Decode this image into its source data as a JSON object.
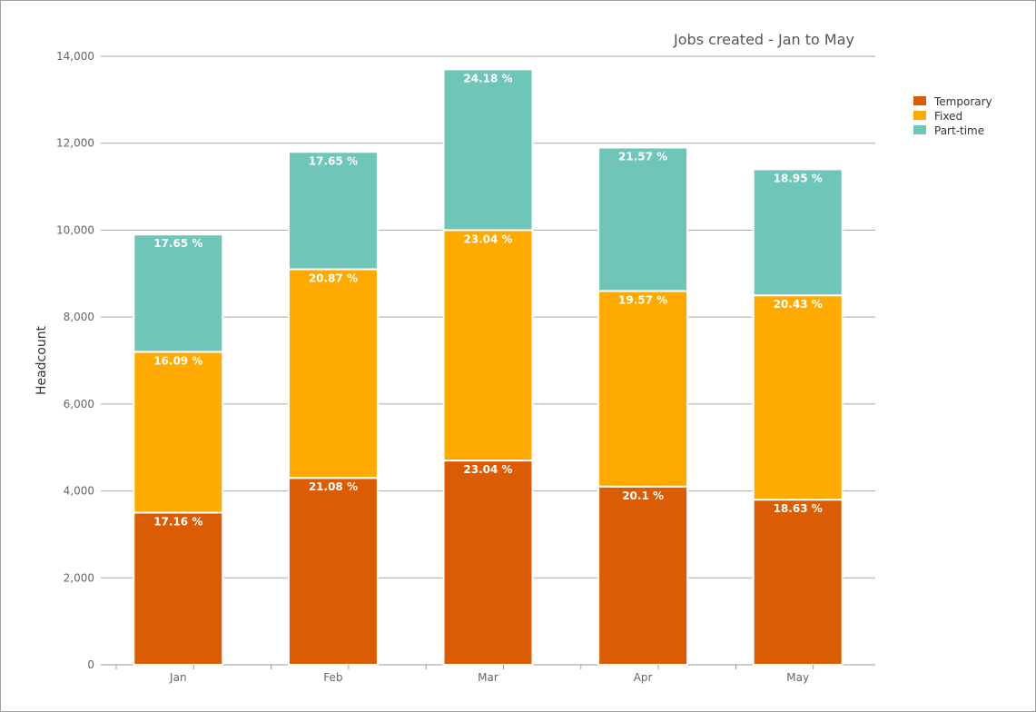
{
  "chart_data": {
    "type": "bar",
    "stacked": true,
    "title": "Jobs created - Jan to May",
    "xlabel": "",
    "ylabel": "Headcount",
    "ylim": [
      0,
      14000
    ],
    "yticks": [
      "0",
      "2,000",
      "4,000",
      "6,000",
      "8,000",
      "10,000",
      "12,000",
      "14,000"
    ],
    "grid": true,
    "legend_position": "right",
    "categories": [
      "Jan",
      "Feb",
      "Mar",
      "Apr",
      "May"
    ],
    "series": [
      {
        "name": "Temporary",
        "color": "#DC5C05",
        "values": [
          3500,
          4300,
          4700,
          4100,
          3800
        ],
        "labels": [
          "17.16 %",
          "21.08 %",
          "23.04 %",
          "20.1 %",
          "18.63 %"
        ]
      },
      {
        "name": "Fixed",
        "color": "#FFAA00",
        "values": [
          3700,
          4800,
          5300,
          4500,
          4700
        ],
        "labels": [
          "16.09 %",
          "20.87 %",
          "23.04 %",
          "19.57 %",
          "20.43 %"
        ]
      },
      {
        "name": "Part-time",
        "color": "#6FC6B8",
        "values": [
          2700,
          2700,
          3700,
          3300,
          2900
        ],
        "labels": [
          "17.65 %",
          "17.65 %",
          "24.18 %",
          "21.57 %",
          "18.95 %"
        ]
      }
    ]
  }
}
